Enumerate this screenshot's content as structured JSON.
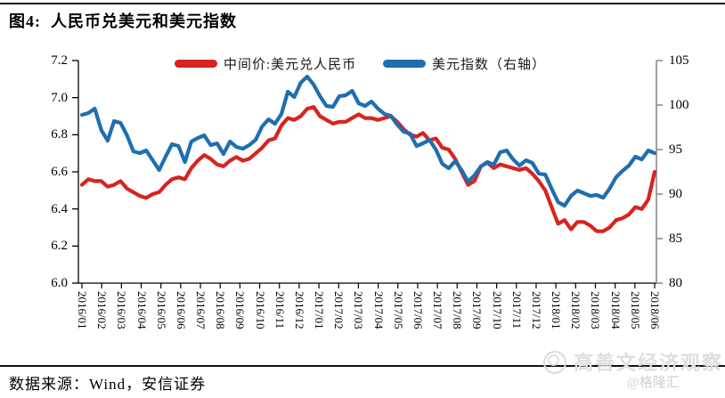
{
  "header": {
    "title": "图4:  人民币兑美元和美元指数"
  },
  "legend": [
    {
      "label": "中间价:美元兑人民币",
      "color": "#d62420"
    },
    {
      "label": "美元指数（右轴）",
      "color": "#1f6eb0"
    }
  ],
  "chart_data": {
    "type": "line",
    "title": "人民币兑美元和美元指数",
    "grid": false,
    "legend_position": "top",
    "x_tick_labels": [
      "2016/01",
      "2016/02",
      "2016/03",
      "2016/04",
      "2016/05",
      "2016/06",
      "2016/07",
      "2016/08",
      "2016/09",
      "2016/10",
      "2016/11",
      "2016/12",
      "2017/01",
      "2017/02",
      "2017/03",
      "2017/04",
      "2017/05",
      "2017/06",
      "2017/07",
      "2017/08",
      "2017/09",
      "2017/10",
      "2017/11",
      "2017/12",
      "2018/01",
      "2018/02",
      "2018/03",
      "2018/04",
      "2018/05",
      "2018/06"
    ],
    "points_per_month": 3,
    "left_axis": {
      "min": 6.0,
      "max": 7.2,
      "ticks": [
        "7.2",
        "7.0",
        "6.8",
        "6.6",
        "6.4",
        "6.2",
        "6.0"
      ]
    },
    "right_axis": {
      "min": 80,
      "max": 105,
      "ticks": [
        "105",
        "100",
        "95",
        "90",
        "85",
        "80"
      ]
    },
    "series": [
      {
        "name": "中间价:美元兑人民币",
        "axis": "left",
        "color": "#d62420",
        "values": [
          6.53,
          6.56,
          6.55,
          6.55,
          6.52,
          6.53,
          6.55,
          6.51,
          6.49,
          6.47,
          6.46,
          6.48,
          6.49,
          6.53,
          6.56,
          6.57,
          6.56,
          6.62,
          6.66,
          6.69,
          6.67,
          6.64,
          6.63,
          6.66,
          6.68,
          6.66,
          6.67,
          6.7,
          6.73,
          6.77,
          6.78,
          6.85,
          6.89,
          6.88,
          6.9,
          6.94,
          6.95,
          6.9,
          6.88,
          6.86,
          6.87,
          6.87,
          6.89,
          6.91,
          6.89,
          6.89,
          6.88,
          6.89,
          6.9,
          6.87,
          6.83,
          6.8,
          6.79,
          6.81,
          6.77,
          6.78,
          6.73,
          6.72,
          6.67,
          6.6,
          6.53,
          6.55,
          6.63,
          6.65,
          6.62,
          6.64,
          6.63,
          6.62,
          6.61,
          6.62,
          6.59,
          6.55,
          6.5,
          6.41,
          6.32,
          6.34,
          6.29,
          6.33,
          6.33,
          6.31,
          6.28,
          6.28,
          6.3,
          6.34,
          6.35,
          6.37,
          6.41,
          6.4,
          6.45,
          6.6
        ]
      },
      {
        "name": "美元指数（右轴）",
        "axis": "right",
        "color": "#1f6eb0",
        "values": [
          98.9,
          99.1,
          99.6,
          97.2,
          96.0,
          98.2,
          98.0,
          96.6,
          94.8,
          94.6,
          94.9,
          93.8,
          92.7,
          94.2,
          95.6,
          95.4,
          93.6,
          95.9,
          96.3,
          96.6,
          95.5,
          95.7,
          94.5,
          95.9,
          95.3,
          95.1,
          95.5,
          96.1,
          97.6,
          98.4,
          97.9,
          99.0,
          101.5,
          100.9,
          102.5,
          103.2,
          102.3,
          101.0,
          99.9,
          99.8,
          101.0,
          101.1,
          101.6,
          100.2,
          99.9,
          100.4,
          99.6,
          99.0,
          98.8,
          97.8,
          97.0,
          96.8,
          95.4,
          95.7,
          96.1,
          95.0,
          93.4,
          92.9,
          93.7,
          92.7,
          91.4,
          92.1,
          93.1,
          93.6,
          93.3,
          94.7,
          94.9,
          93.9,
          93.2,
          93.8,
          93.5,
          92.3,
          92.2,
          90.6,
          89.1,
          88.7,
          89.8,
          90.4,
          90.1,
          89.8,
          89.9,
          89.6,
          90.6,
          91.9,
          92.6,
          93.2,
          94.2,
          93.9,
          94.9,
          94.6
        ]
      }
    ]
  },
  "source": {
    "text": "数据来源：Wind，安信证券"
  },
  "watermark": {
    "main": "高善文经济观察",
    "sub": "@格隆汇"
  }
}
